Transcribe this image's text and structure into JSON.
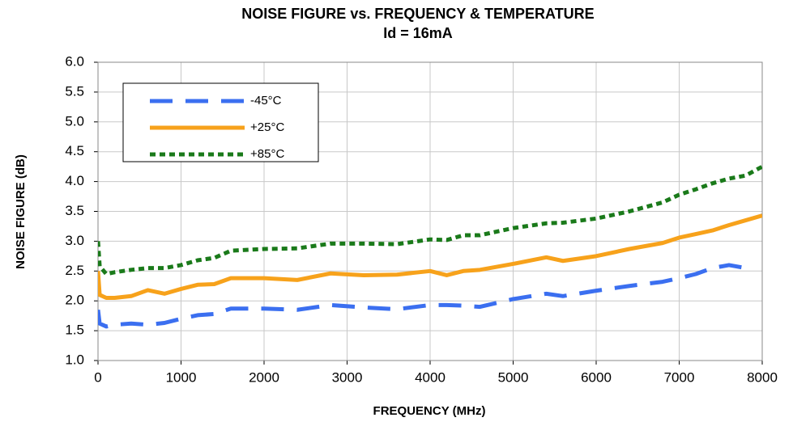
{
  "chart_data": {
    "type": "line",
    "title": "NOISE FIGURE vs. FREQUENCY & TEMPERATURE",
    "subtitle": "Id = 16mA",
    "x_label": "FREQUENCY (MHz)",
    "y_label": "NOISE FIGURE (dB)",
    "x": [
      0,
      20,
      100,
      200,
      400,
      600,
      800,
      1000,
      1200,
      1400,
      1600,
      2000,
      2400,
      2800,
      3200,
      3600,
      4000,
      4200,
      4400,
      4600,
      5000,
      5400,
      5600,
      6000,
      6400,
      6800,
      7000,
      7200,
      7400,
      7600,
      7800,
      8000
    ],
    "series": [
      {
        "name": "-45°C",
        "color": "#3b6ff0",
        "dash": "28,16",
        "values": [
          1.85,
          1.62,
          1.57,
          1.6,
          1.62,
          1.6,
          1.63,
          1.7,
          1.76,
          1.78,
          1.87,
          1.87,
          1.85,
          1.93,
          1.89,
          1.86,
          1.93,
          1.93,
          1.92,
          1.9,
          2.03,
          2.12,
          2.08,
          2.17,
          2.25,
          2.32,
          2.38,
          2.45,
          2.55,
          2.6,
          2.55,
          null
        ]
      },
      {
        "name": "+25°C",
        "color": "#f7a21b",
        "dash": "none",
        "values": [
          2.5,
          2.1,
          2.05,
          2.05,
          2.08,
          2.18,
          2.12,
          2.2,
          2.27,
          2.28,
          2.38,
          2.38,
          2.35,
          2.46,
          2.43,
          2.44,
          2.5,
          2.43,
          2.5,
          2.52,
          2.62,
          2.73,
          2.67,
          2.75,
          2.87,
          2.97,
          3.06,
          3.12,
          3.18,
          3.27,
          3.35,
          3.43
        ]
      },
      {
        "name": "+85°C",
        "color": "#1a7a1a",
        "dash": "7,5",
        "values": [
          3.0,
          2.58,
          2.45,
          2.48,
          2.52,
          2.55,
          2.55,
          2.6,
          2.68,
          2.72,
          2.84,
          2.87,
          2.88,
          2.96,
          2.96,
          2.95,
          3.03,
          3.02,
          3.1,
          3.1,
          3.22,
          3.3,
          3.31,
          3.38,
          3.5,
          3.65,
          3.78,
          3.87,
          3.97,
          4.05,
          4.1,
          4.25
        ]
      }
    ],
    "xlim": [
      0,
      8000
    ],
    "xticks": [
      0,
      1000,
      2000,
      3000,
      4000,
      5000,
      6000,
      7000,
      8000
    ],
    "ylim": [
      1,
      6
    ],
    "yticks": [
      {
        "value": 1,
        "label": "1.0"
      },
      1.5,
      {
        "value": 2,
        "label": "2.0"
      },
      2.5,
      {
        "value": 3,
        "label": "3.0"
      },
      3.5,
      {
        "value": 4,
        "label": "4.0"
      },
      4.5,
      {
        "value": 5,
        "label": "5.0"
      },
      5.5,
      {
        "value": 6,
        "label": "6.0"
      }
    ],
    "grid": true,
    "legend": "upper-left"
  }
}
